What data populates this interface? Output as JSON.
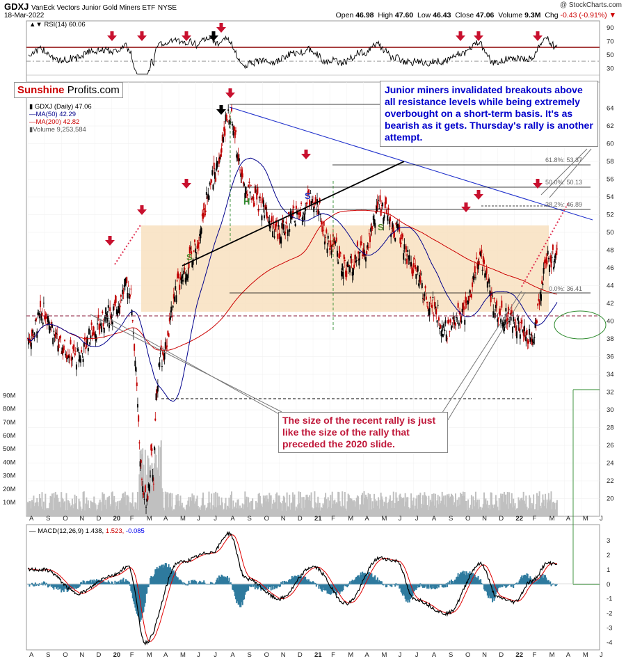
{
  "header": {
    "ticker": "GDXJ",
    "name": "VanEck Vectors Junior Gold Miners ETF",
    "exchange": "NYSE",
    "date": "18-Mar-2022",
    "credit": "@ StockCharts.com",
    "open_label": "Open",
    "open": "46.98",
    "high_label": "High",
    "high": "47.60",
    "low_label": "Low",
    "low": "46.43",
    "close_label": "Close",
    "close": "47.06",
    "volume_label": "Volume",
    "volume": "9.3M",
    "chg_label": "Chg",
    "chg": "-0.43 (-0.91%)"
  },
  "logo": {
    "part1": "Sunshine",
    "part2": "Profits.com"
  },
  "legend": {
    "rsi": "RSI(14) 60.06",
    "price": "GDXJ (Daily) 47.06",
    "ma50": "MA(50) 42.29",
    "ma200": "MA(200) 42.82",
    "volume": "Volume 9,253,584",
    "macd_label": "MACD(12,26,9)",
    "macd_v1": "1.438,",
    "macd_v2": "1.523,",
    "macd_v3": "-0.085"
  },
  "annotations": {
    "callout_blue": "Junior miners invalidated breakouts above all resistance levels while being extremely overbought on a short-term basis. It's as bearish as it gets. Thursday's rally is another attempt.",
    "callout_red": "The size of the recent rally is just like the size of the rally that preceded the 2020 slide.",
    "fib_618": "61.8%: 53.37",
    "fib_500": "50.0%: 50.13",
    "fib_382": "38.2%: 46.89",
    "fib_000": "0.0%: 36.41",
    "hs_h": "H",
    "hs_s1": "S",
    "hs_s2": "S",
    "hs_s3": "S"
  },
  "colors": {
    "up": "#000000",
    "down": "#c00000",
    "ma50": "#00008b",
    "ma200": "#cc0000",
    "volume": "#b8b8b8",
    "trend_blue": "#2233cc",
    "zone": "#f8e0c0",
    "arrow": "#c8102e",
    "macd_hist": "#2e7a9e",
    "signal": "#e00000",
    "oval": "#2e8b2e"
  },
  "chart_data": [
    {
      "type": "line",
      "panel": "RSI(14)",
      "yticks": [
        "30",
        "50",
        "70",
        "90"
      ],
      "ylim": [
        10,
        100
      ],
      "series": [
        {
          "name": "RSI(14)",
          "last": 60.06
        }
      ]
    },
    {
      "type": "line",
      "panel": "GDXJ (Daily)",
      "ylim": [
        18,
        66
      ],
      "yticks": [
        "20",
        "22",
        "24",
        "26",
        "28",
        "30",
        "32",
        "34",
        "36",
        "38",
        "40",
        "42",
        "44",
        "46",
        "48",
        "50",
        "52",
        "54",
        "56",
        "58",
        "60",
        "62",
        "64"
      ],
      "xticks": [
        "A",
        "S",
        "O",
        "N",
        "D",
        "20",
        "F",
        "M",
        "A",
        "M",
        "J",
        "J",
        "A",
        "S",
        "O",
        "N",
        "D",
        "21",
        "F",
        "M",
        "A",
        "M",
        "J",
        "J",
        "A",
        "S",
        "O",
        "N",
        "D",
        "22",
        "F",
        "M",
        "A",
        "M",
        "J"
      ],
      "x_range": [
        "2019-08",
        "2022-06"
      ],
      "key_points": [
        {
          "x": "2019-08",
          "y": 38
        },
        {
          "x": "2019-09",
          "y": 41
        },
        {
          "x": "2019-10",
          "y": 37
        },
        {
          "x": "2019-11",
          "y": 36
        },
        {
          "x": "2019-12",
          "y": 39
        },
        {
          "x": "2020-01",
          "y": 41
        },
        {
          "x": "2020-02",
          "y": 44
        },
        {
          "x": "2020-03",
          "y": 20
        },
        {
          "x": "2020-04",
          "y": 36
        },
        {
          "x": "2020-05",
          "y": 44
        },
        {
          "x": "2020-06",
          "y": 48
        },
        {
          "x": "2020-07",
          "y": 56
        },
        {
          "x": "2020-08",
          "y": 63
        },
        {
          "x": "2020-09",
          "y": 55
        },
        {
          "x": "2020-10",
          "y": 53
        },
        {
          "x": "2020-11",
          "y": 50
        },
        {
          "x": "2020-12",
          "y": 52
        },
        {
          "x": "2021-01",
          "y": 54
        },
        {
          "x": "2021-02",
          "y": 49
        },
        {
          "x": "2021-03",
          "y": 46
        },
        {
          "x": "2021-04",
          "y": 48
        },
        {
          "x": "2021-05",
          "y": 53
        },
        {
          "x": "2021-06",
          "y": 50
        },
        {
          "x": "2021-07",
          "y": 46
        },
        {
          "x": "2021-08",
          "y": 42
        },
        {
          "x": "2021-09",
          "y": 39
        },
        {
          "x": "2021-10",
          "y": 41
        },
        {
          "x": "2021-11",
          "y": 47
        },
        {
          "x": "2021-12",
          "y": 41
        },
        {
          "x": "2022-01",
          "y": 40
        },
        {
          "x": "2022-02",
          "y": 38
        },
        {
          "x": "2022-03",
          "y": 47.06
        }
      ],
      "levels": [
        53.37,
        50.13,
        46.89,
        36.41,
        34
      ]
    },
    {
      "type": "bar",
      "panel": "Volume",
      "yticks": [
        "10M",
        "20M",
        "30M",
        "40M",
        "50M",
        "60M",
        "70M",
        "80M",
        "90M"
      ],
      "last": 9253584
    },
    {
      "type": "line",
      "panel": "MACD(12,26,9)",
      "yticks": [
        "-4",
        "-3",
        "-2",
        "-1",
        "0",
        "1",
        "2",
        "3"
      ],
      "ylim": [
        -4.3,
        3.8
      ],
      "xticks": [
        "A",
        "S",
        "O",
        "N",
        "D",
        "20",
        "F",
        "M",
        "A",
        "M",
        "J",
        "J",
        "A",
        "S",
        "O",
        "N",
        "D",
        "21",
        "F",
        "M",
        "A",
        "M",
        "J",
        "J",
        "A",
        "S",
        "O",
        "N",
        "D",
        "22",
        "F",
        "M",
        "A",
        "M",
        "J"
      ],
      "series": [
        {
          "name": "MACD",
          "last": 1.438
        },
        {
          "name": "Signal",
          "last": 1.523
        },
        {
          "name": "Histogram",
          "last": -0.085
        }
      ],
      "key_points": [
        {
          "x": "2019-09",
          "y": 1.0
        },
        {
          "x": "2019-11",
          "y": -0.6
        },
        {
          "x": "2020-01",
          "y": 0.6
        },
        {
          "x": "2020-02",
          "y": 1.2
        },
        {
          "x": "2020-03",
          "y": -4.0
        },
        {
          "x": "2020-05",
          "y": 1.5
        },
        {
          "x": "2020-07",
          "y": 2.2
        },
        {
          "x": "2020-08",
          "y": 3.5
        },
        {
          "x": "2020-09",
          "y": 0.4
        },
        {
          "x": "2020-11",
          "y": -1.0
        },
        {
          "x": "2021-01",
          "y": 1.2
        },
        {
          "x": "2021-03",
          "y": -1.3
        },
        {
          "x": "2021-05",
          "y": 1.8
        },
        {
          "x": "2021-06",
          "y": 1.6
        },
        {
          "x": "2021-07",
          "y": -1.0
        },
        {
          "x": "2021-09",
          "y": -2.0
        },
        {
          "x": "2021-11",
          "y": 1.4
        },
        {
          "x": "2021-12",
          "y": -0.9
        },
        {
          "x": "2022-01",
          "y": -1.2
        },
        {
          "x": "2022-02",
          "y": 0.2
        },
        {
          "x": "2022-03",
          "y": 1.438
        }
      ]
    }
  ]
}
